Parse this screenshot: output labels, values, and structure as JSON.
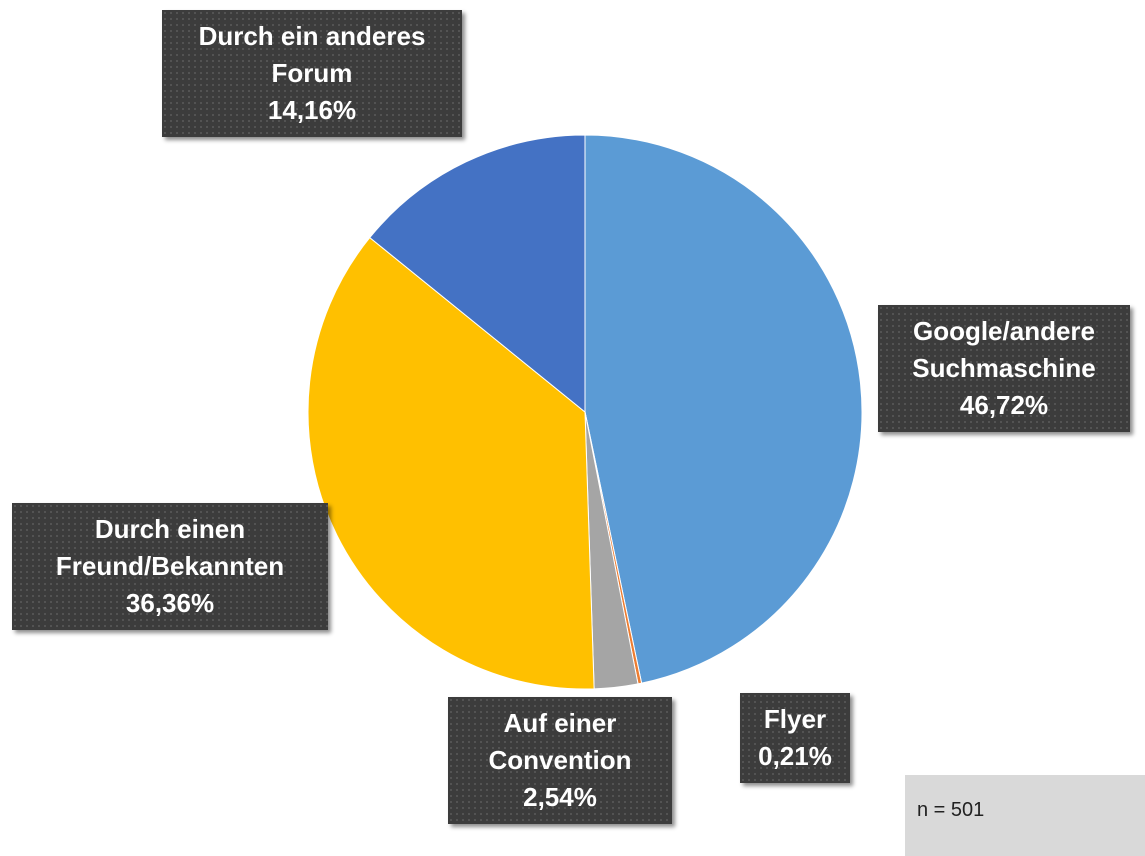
{
  "chart_data": {
    "type": "pie",
    "categories": [
      "Google/andere Suchmaschine",
      "Flyer",
      "Auf einer Convention",
      "Durch einen Freund/Bekannten",
      "Durch ein anderes Forum"
    ],
    "values": [
      46.72,
      0.21,
      2.54,
      36.36,
      14.16
    ],
    "value_labels": [
      "46,72%",
      "0,21%",
      "2,54%",
      "36,36%",
      "14,16%"
    ],
    "colors": [
      "#5b9bd5",
      "#ed7d31",
      "#a5a5a5",
      "#ffc000",
      "#4472c4"
    ],
    "annotation": "n = 501"
  }
}
